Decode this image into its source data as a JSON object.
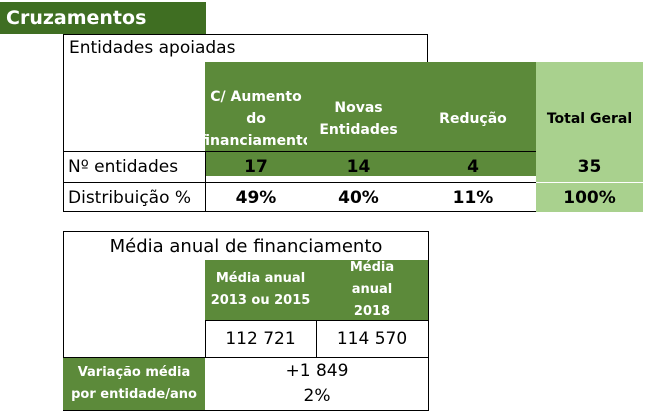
{
  "banner": {
    "title": "Cruzamentos"
  },
  "table1": {
    "title": "Entidades apoiadas",
    "headers": {
      "col1": "C/ Aumento do financiamento",
      "col2": "Novas Entidades",
      "col3": "Redução",
      "total": "Total Geral"
    },
    "rows": [
      {
        "label": "Nº entidades",
        "col1": "17",
        "col2": "14",
        "col3": "4",
        "total": "35"
      },
      {
        "label": "Distribuição %",
        "col1": "49%",
        "col2": "40%",
        "col3": "11%",
        "total": "100%"
      }
    ]
  },
  "table2": {
    "title": "Média anual de financiamento",
    "headers": {
      "col1": "Média anual 2013 ou 2015",
      "col2": "Média anual 2018"
    },
    "values": {
      "col1": "112 721",
      "col2": "114 570"
    },
    "variation": {
      "label": "Variação média por entidade/ano",
      "absolute": "+1 849",
      "percent": "2%"
    }
  },
  "colors": {
    "dark_green": "#3f6e22",
    "header_green": "#5c8a3a",
    "light_green": "#a9d18e"
  }
}
